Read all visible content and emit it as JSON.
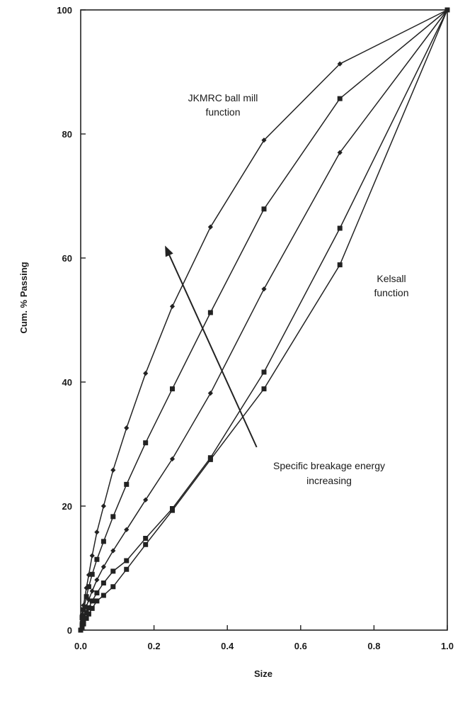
{
  "chart_data": {
    "type": "line",
    "title": "",
    "xlabel": "Size",
    "ylabel": "Cum. % Passing",
    "xlim": [
      0,
      1
    ],
    "ylim": [
      0,
      100
    ],
    "x_ticks": [
      0,
      0.2,
      0.4,
      0.6,
      0.8,
      1
    ],
    "x_tick_labels": [
      "0.0",
      "0.2",
      "0.4",
      "0.6",
      "0.8",
      "1.0"
    ],
    "y_ticks": [
      0,
      20,
      40,
      60,
      80,
      100
    ],
    "y_tick_labels": [
      "0",
      "20",
      "40",
      "60",
      "80",
      "100"
    ],
    "grid": false,
    "colors": {
      "line": "#222222",
      "text": "#1a1a1a",
      "background": "#ffffff"
    },
    "annotations": {
      "jkmrc": [
        "JKMRC ball mill",
        "function"
      ],
      "kelsall": [
        "Kelsall",
        "function"
      ],
      "energy": [
        "Specific breakage energy",
        "increasing"
      ]
    },
    "arrow": {
      "from": [
        0.48,
        29.5
      ],
      "to": [
        0.23,
        62
      ]
    },
    "series": [
      {
        "marker": "diamond",
        "x": [
          0,
          0.0039,
          0.0078,
          0.0156,
          0.0221,
          0.0313,
          0.0442,
          0.0625,
          0.0884,
          0.125,
          0.177,
          0.25,
          0.354,
          0.5,
          0.707,
          1.0
        ],
        "y": [
          0,
          2.5,
          4.0,
          6.8,
          8.9,
          12.0,
          15.8,
          20.0,
          25.8,
          32.6,
          41.4,
          52.2,
          65.0,
          79.0,
          91.3,
          100
        ]
      },
      {
        "marker": "square",
        "x": [
          0,
          0.0039,
          0.0078,
          0.0156,
          0.0221,
          0.0313,
          0.0442,
          0.0625,
          0.0884,
          0.125,
          0.177,
          0.25,
          0.354,
          0.5,
          0.707,
          1.0
        ],
        "y": [
          0,
          2.0,
          3.3,
          5.4,
          7.0,
          9.0,
          11.4,
          14.3,
          18.3,
          23.5,
          30.2,
          38.9,
          51.2,
          67.9,
          85.7,
          100
        ]
      },
      {
        "marker": "diamond",
        "x": [
          0,
          0.0039,
          0.0078,
          0.0156,
          0.0221,
          0.0313,
          0.0442,
          0.0625,
          0.0884,
          0.125,
          0.177,
          0.25,
          0.354,
          0.5,
          0.707,
          1.0
        ],
        "y": [
          0,
          1.4,
          2.3,
          3.8,
          4.9,
          6.3,
          8.1,
          10.2,
          12.8,
          16.2,
          21.0,
          27.6,
          38.2,
          55.0,
          77.0,
          100
        ]
      },
      {
        "marker": "square",
        "x": [
          0,
          0.0039,
          0.0078,
          0.0156,
          0.0221,
          0.0313,
          0.0442,
          0.0625,
          0.0884,
          0.125,
          0.177,
          0.25,
          0.354,
          0.5,
          0.707,
          1.0
        ],
        "y": [
          0,
          0.9,
          1.6,
          2.8,
          3.6,
          4.7,
          6.0,
          7.6,
          9.5,
          11.2,
          14.8,
          19.6,
          27.8,
          41.6,
          64.8,
          100
        ]
      },
      {
        "marker": "square",
        "x": [
          0,
          0.0039,
          0.0078,
          0.0156,
          0.0221,
          0.0313,
          0.0442,
          0.0625,
          0.0884,
          0.125,
          0.177,
          0.25,
          0.354,
          0.5,
          0.707,
          1.0
        ],
        "y": [
          0,
          0.5,
          1.0,
          1.9,
          2.6,
          3.5,
          4.7,
          5.6,
          7.0,
          9.8,
          13.8,
          19.3,
          27.5,
          38.9,
          58.9,
          100
        ]
      }
    ]
  }
}
